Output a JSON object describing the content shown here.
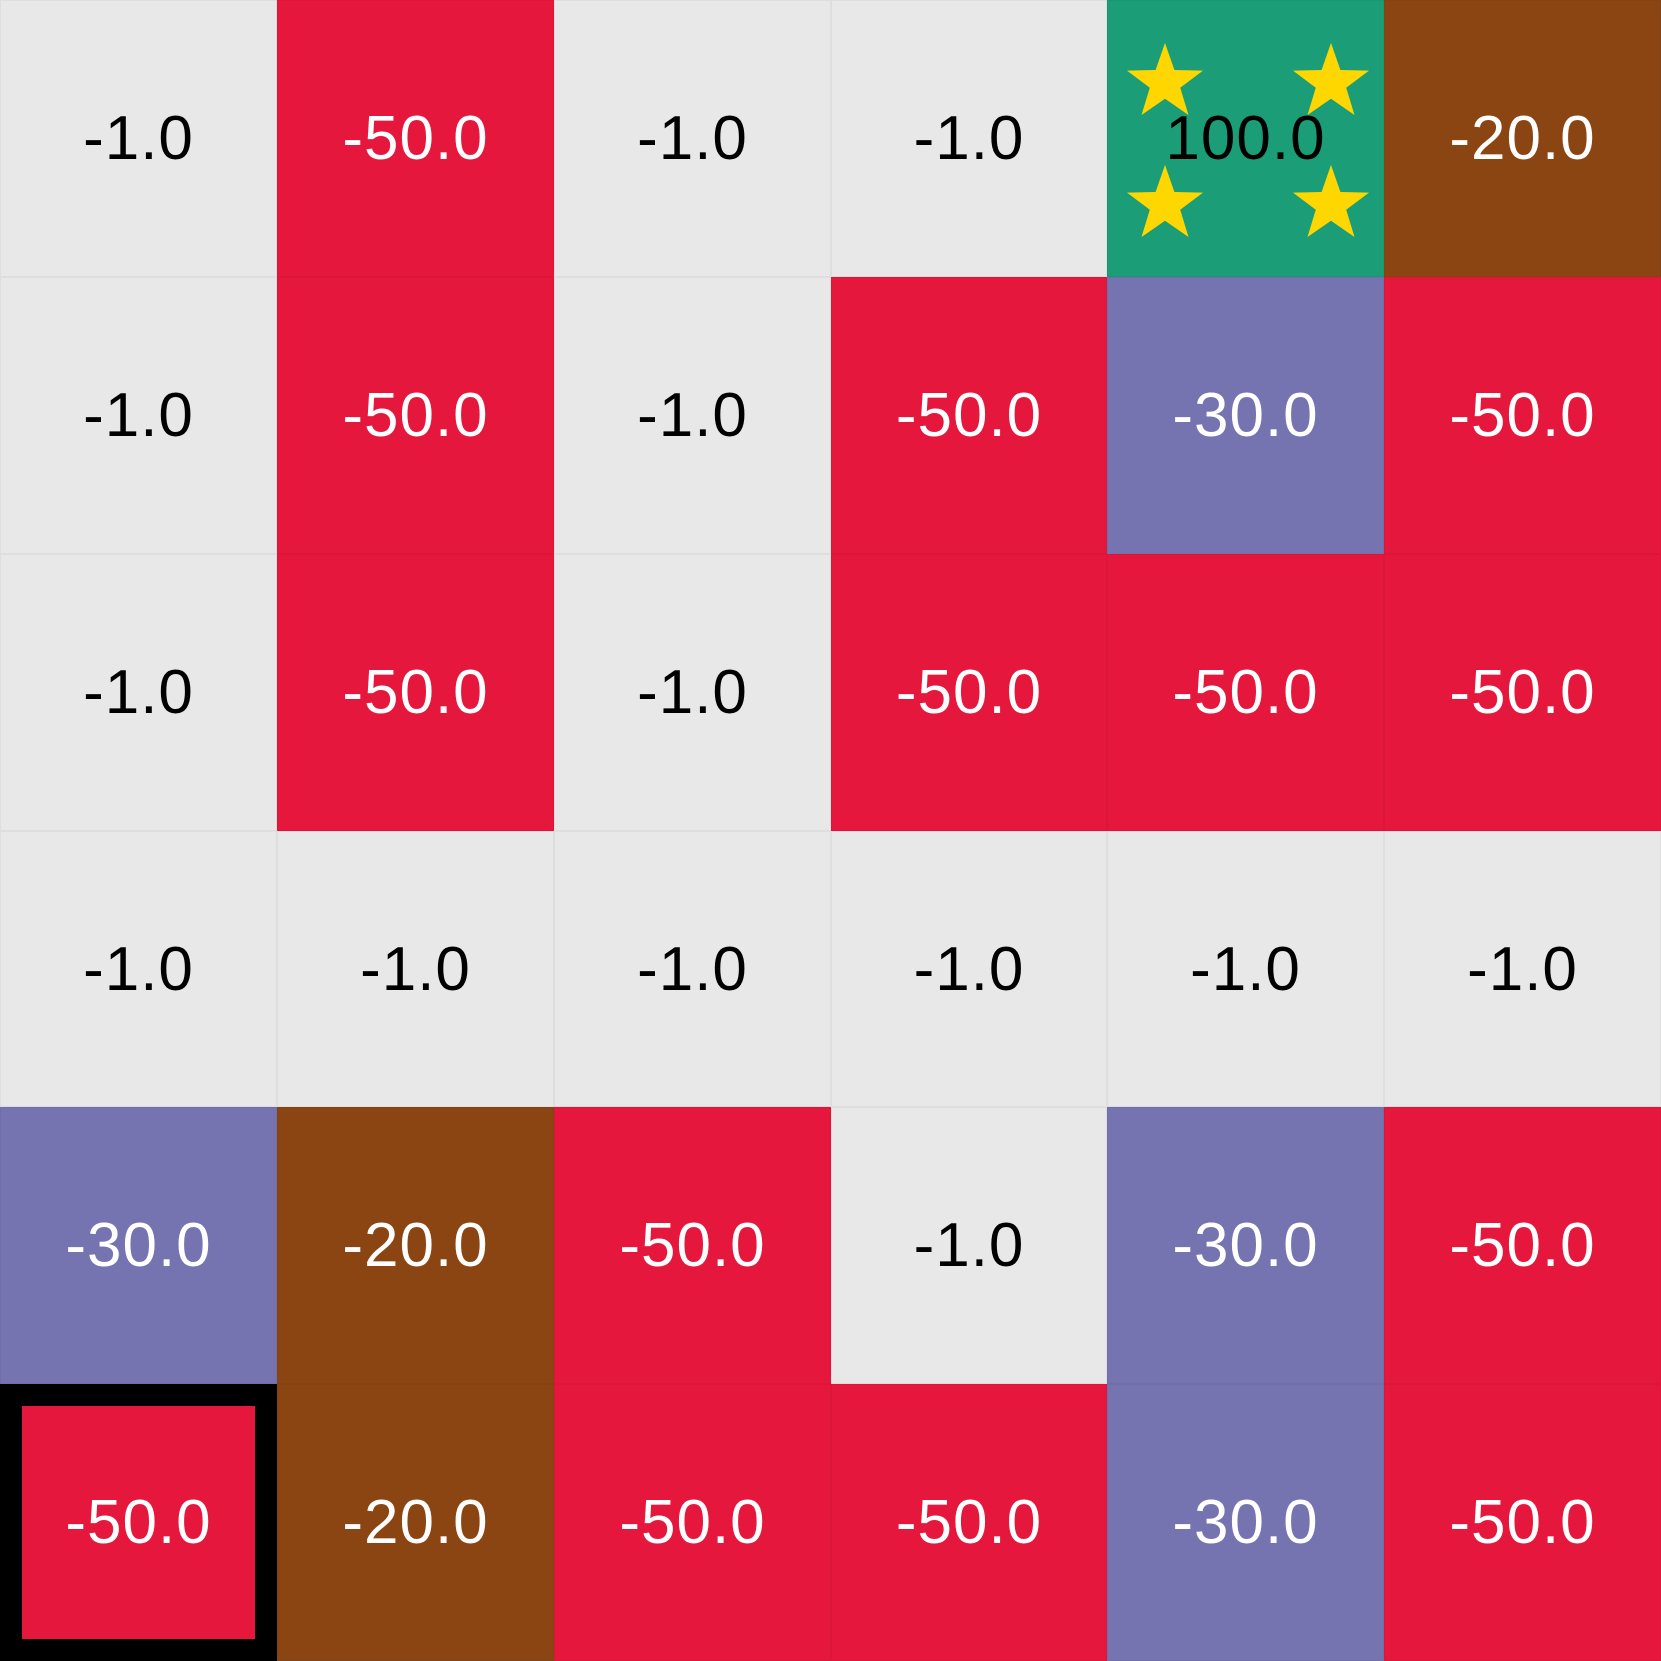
{
  "grid": {
    "rows": 6,
    "cols": 6,
    "cells": [
      [
        "-1.0",
        "-50.0",
        "-1.0",
        "-1.0",
        "100.0",
        "-20.0"
      ],
      [
        "-1.0",
        "-50.0",
        "-1.0",
        "-50.0",
        "-30.0",
        "-50.0"
      ],
      [
        "-1.0",
        "-50.0",
        "-1.0",
        "-50.0",
        "-50.0",
        "-50.0"
      ],
      [
        "-1.0",
        "-1.0",
        "-1.0",
        "-1.0",
        "-1.0",
        "-1.0"
      ],
      [
        "-30.0",
        "-20.0",
        "-50.0",
        "-1.0",
        "-30.0",
        "-50.0"
      ],
      [
        "-50.0",
        "-20.0",
        "-50.0",
        "-50.0",
        "-30.0",
        "-50.0"
      ]
    ],
    "agent": {
      "row": 5,
      "col": 0
    },
    "goal": {
      "row": 0,
      "col": 4,
      "icon": "star-icon"
    }
  },
  "colors": {
    "-1.0": {
      "bg": "#e8e8e8",
      "fg": "#000000"
    },
    "-50.0": {
      "bg": "#e6173c",
      "fg": "#ffffff"
    },
    "-30.0": {
      "bg": "#7673b1",
      "fg": "#ffffff"
    },
    "-20.0": {
      "bg": "#8b4513",
      "fg": "#ffffff"
    },
    "100.0": {
      "bg": "#1b9e77",
      "fg": "#000000"
    },
    "star": "#ffd700",
    "agent_border": "#000000"
  }
}
